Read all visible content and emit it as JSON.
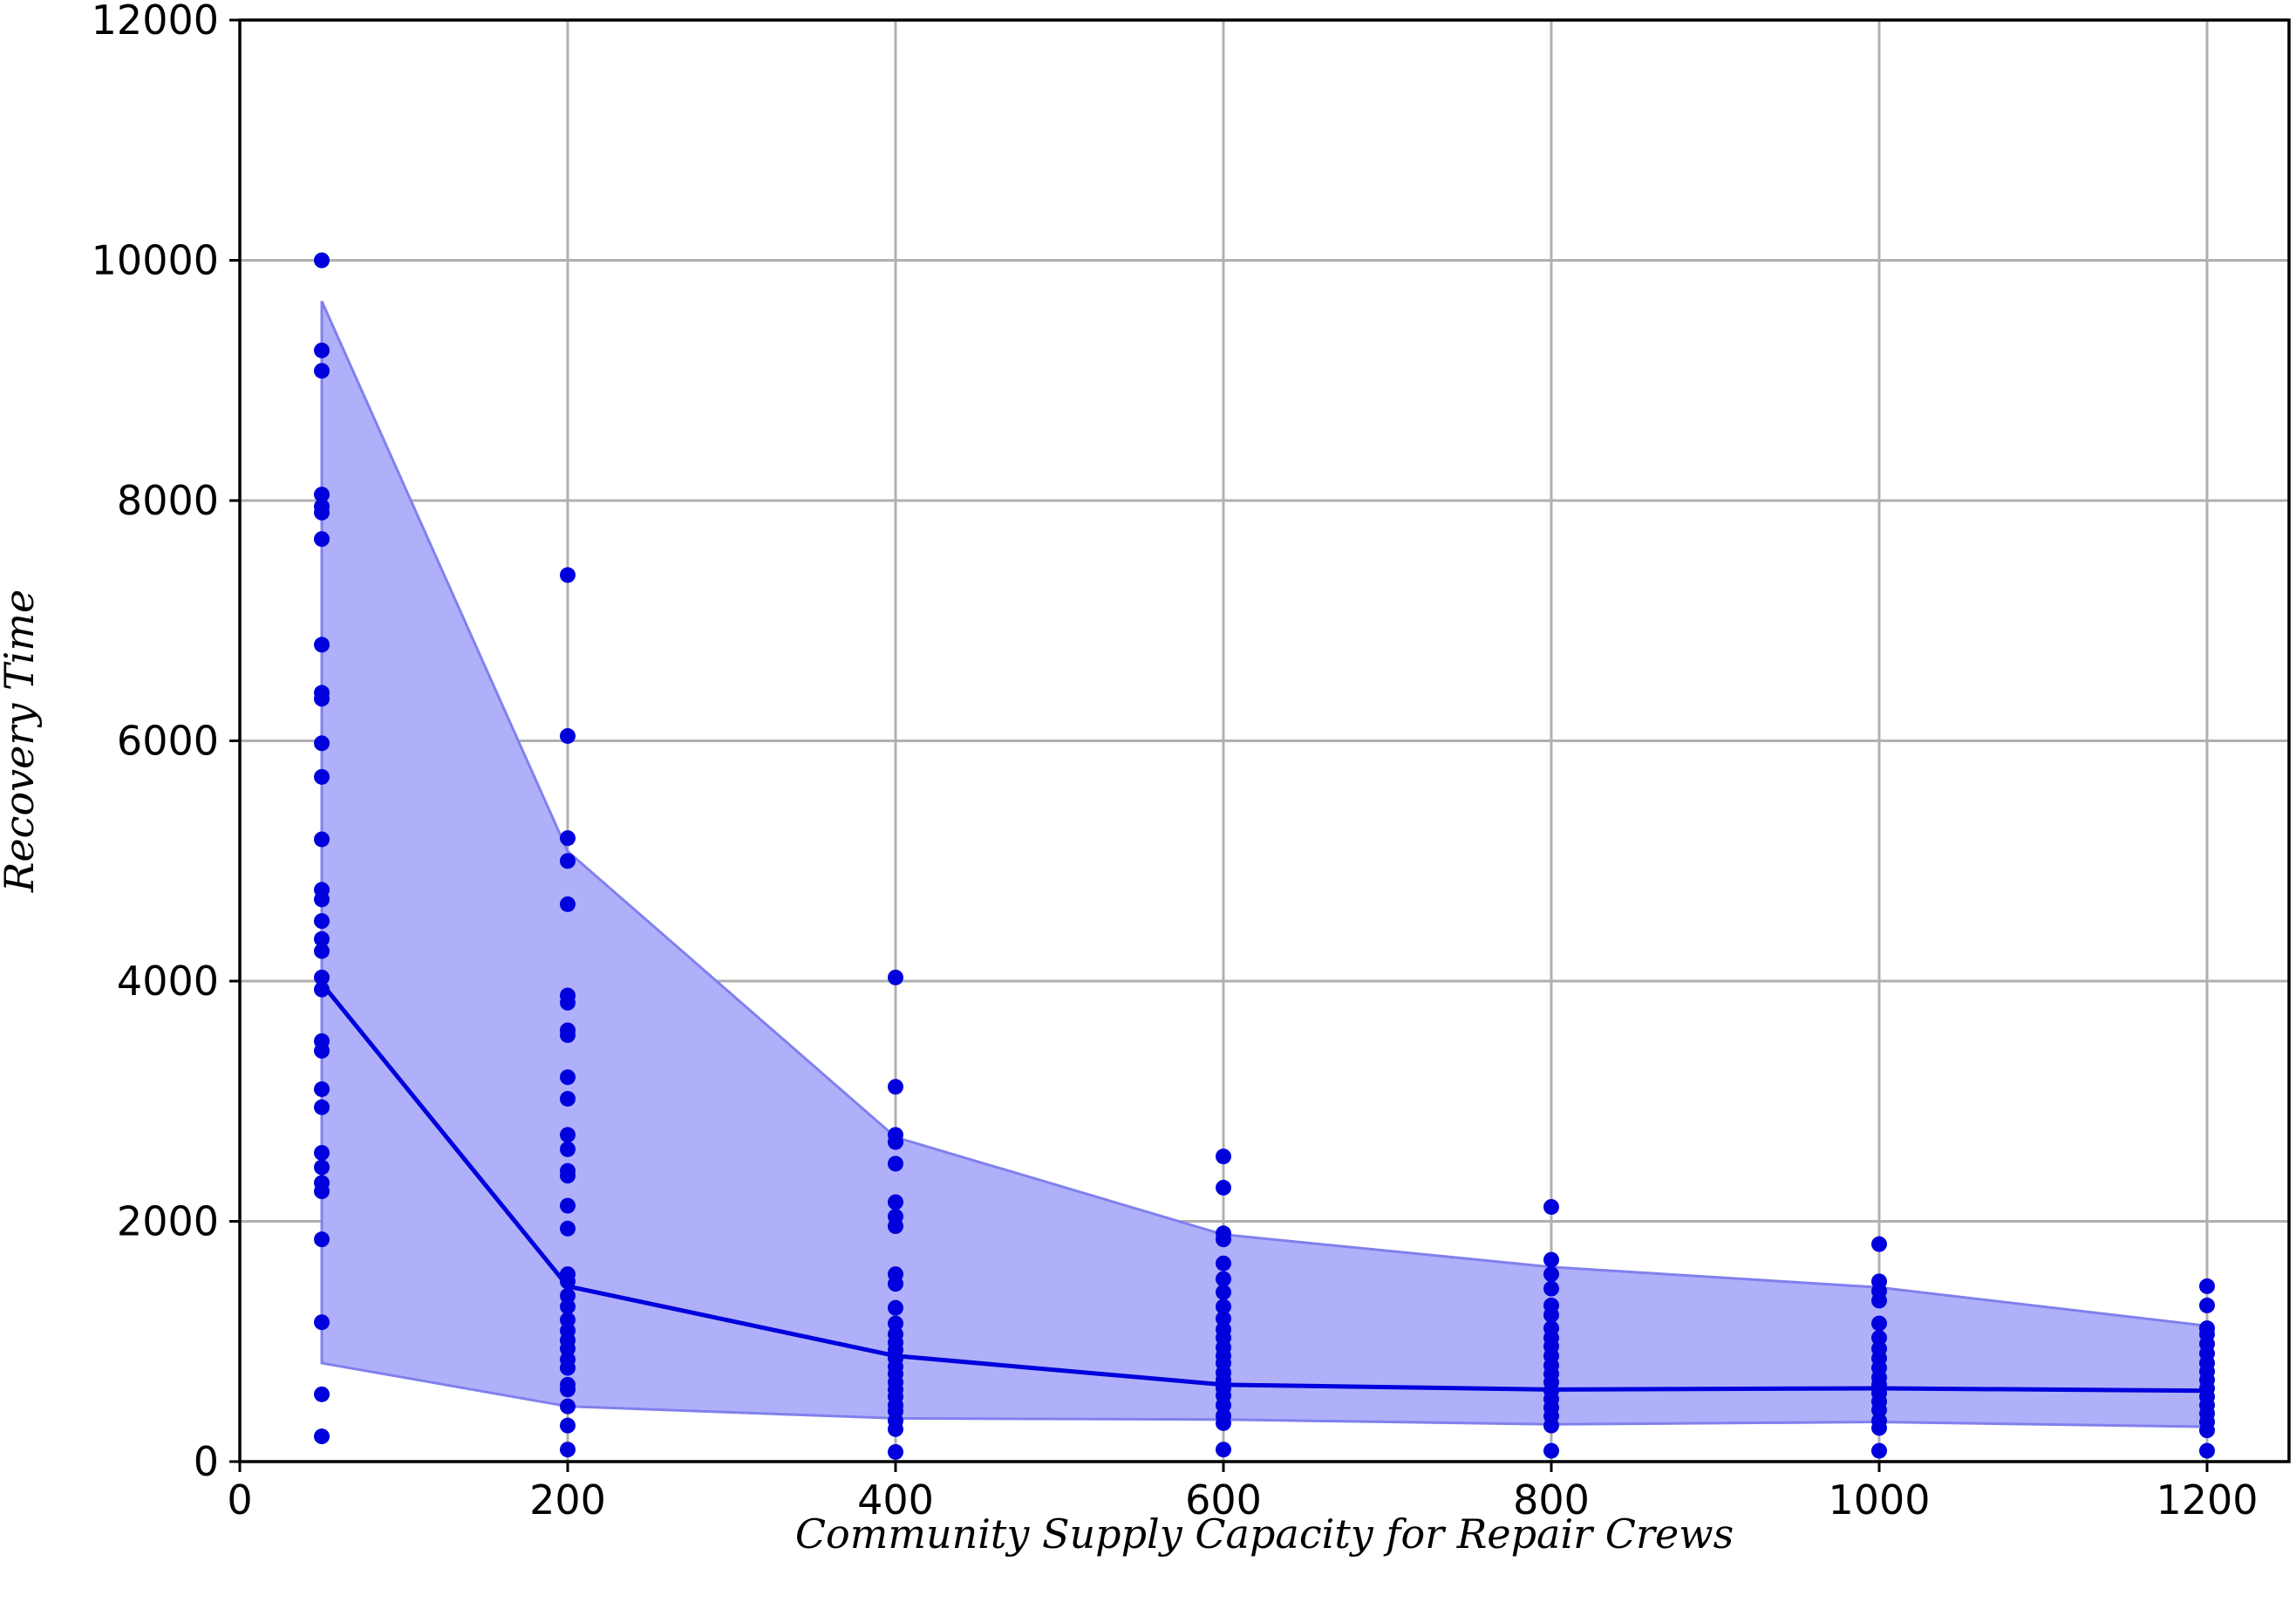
{
  "chart_data": {
    "type": "scatter",
    "title": "",
    "xlabel": "Community Supply Capacity for Repair Crews",
    "ylabel": "Recovery Time",
    "xlim": [
      0,
      1250
    ],
    "ylim": [
      0,
      12000
    ],
    "x_ticks": [
      0,
      200,
      400,
      600,
      800,
      1000,
      1200
    ],
    "y_ticks": [
      0,
      2000,
      4000,
      6000,
      8000,
      10000,
      12000
    ],
    "grid": true,
    "colors": {
      "points": "#0000dd",
      "line": "#0000dd",
      "band_fill": "#b0b0fa",
      "band_edge": "#8080ee"
    },
    "mean_line": {
      "x": [
        50,
        200,
        400,
        600,
        800,
        1000,
        1200
      ],
      "y": [
        3980,
        1460,
        880,
        640,
        600,
        610,
        590
      ]
    },
    "band": {
      "x": [
        50,
        200,
        400,
        600,
        800,
        1000,
        1200
      ],
      "upper": [
        9660,
        5080,
        2700,
        1890,
        1620,
        1450,
        1130
      ],
      "lower": [
        820,
        460,
        360,
        350,
        310,
        330,
        290
      ]
    },
    "points": [
      {
        "x": 50,
        "y": [
          10000,
          9250,
          9080,
          8050,
          7950,
          7900,
          7680,
          6800,
          6400,
          6350,
          5980,
          5700,
          5180,
          4760,
          4680,
          4500,
          4350,
          4250,
          4030,
          3930,
          3500,
          3420,
          3100,
          2950,
          2570,
          2450,
          2320,
          2250,
          1850,
          1160,
          560,
          210
        ]
      },
      {
        "x": 200,
        "y": [
          7380,
          6040,
          5190,
          5000,
          4640,
          3880,
          3820,
          3590,
          3550,
          3200,
          3020,
          2720,
          2600,
          2420,
          2380,
          2130,
          1940,
          1560,
          1500,
          1380,
          1290,
          1180,
          1090,
          1010,
          940,
          850,
          780,
          640,
          600,
          460,
          300,
          100
        ]
      },
      {
        "x": 400,
        "y": [
          4030,
          3120,
          2720,
          2660,
          2480,
          2160,
          2040,
          1960,
          1560,
          1480,
          1280,
          1150,
          1060,
          990,
          930,
          860,
          790,
          730,
          660,
          600,
          540,
          470,
          420,
          340,
          270,
          80
        ]
      },
      {
        "x": 600,
        "y": [
          2540,
          2280,
          1900,
          1850,
          1650,
          1520,
          1410,
          1290,
          1190,
          1100,
          1030,
          950,
          880,
          820,
          740,
          680,
          610,
          550,
          470,
          380,
          320,
          100
        ]
      },
      {
        "x": 800,
        "y": [
          2120,
          1680,
          1560,
          1440,
          1300,
          1220,
          1110,
          1030,
          960,
          880,
          800,
          730,
          660,
          590,
          520,
          450,
          380,
          300,
          90
        ]
      },
      {
        "x": 1000,
        "y": [
          1810,
          1500,
          1420,
          1340,
          1150,
          1030,
          940,
          860,
          780,
          700,
          640,
          570,
          500,
          430,
          340,
          280,
          90
        ]
      },
      {
        "x": 1200,
        "y": [
          1460,
          1300,
          1110,
          1060,
          980,
          900,
          820,
          750,
          680,
          610,
          540,
          470,
          400,
          330,
          260,
          90
        ]
      }
    ]
  }
}
